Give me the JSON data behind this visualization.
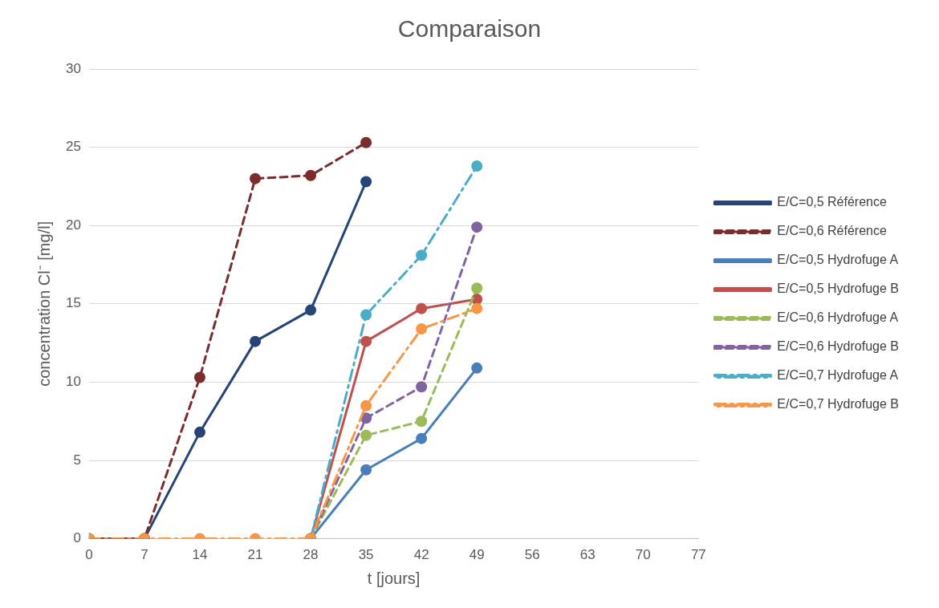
{
  "chart_data": {
    "type": "line",
    "title": "Comparaison",
    "xlabel": "t [jours]",
    "ylabel": "concentration Cl⁻ [mg/l]",
    "x": [
      0,
      7,
      14,
      21,
      28,
      35,
      42,
      49
    ],
    "xlim": [
      0,
      77
    ],
    "xticks": [
      0,
      7,
      14,
      21,
      28,
      35,
      42,
      49,
      56,
      63,
      70,
      77
    ],
    "ylim": [
      0,
      30
    ],
    "yticks": [
      0,
      5,
      10,
      15,
      20,
      25,
      30
    ],
    "grid": "y",
    "legend": "right",
    "marker": "circle",
    "series": [
      {
        "name": "E/C=0,5 Référence",
        "color": "#264478",
        "line_style": "solid",
        "values": [
          0,
          0,
          6.8,
          12.6,
          14.6,
          22.8,
          null,
          null
        ]
      },
      {
        "name": "E/C=0,6 Référence",
        "color": "#7b2c2c",
        "line_style": "dashed",
        "values": [
          0,
          0,
          10.3,
          23.0,
          23.2,
          25.3,
          null,
          null
        ]
      },
      {
        "name": "E/C=0,5 Hydrofuge A",
        "color": "#4a7ebb",
        "line_style": "solid",
        "values": [
          null,
          null,
          null,
          null,
          0,
          4.4,
          6.4,
          10.9
        ]
      },
      {
        "name": "E/C=0,5 Hydrofuge B",
        "color": "#c0504d",
        "line_style": "solid",
        "values": [
          null,
          null,
          null,
          null,
          0,
          12.6,
          14.7,
          15.3
        ]
      },
      {
        "name": "E/C=0,6 Hydrofuge A",
        "color": "#9bbb59",
        "line_style": "dashed",
        "values": [
          null,
          null,
          null,
          null,
          0,
          6.6,
          7.5,
          16.0
        ]
      },
      {
        "name": "E/C=0,6 Hydrofuge B",
        "color": "#8064a2",
        "line_style": "dashed",
        "values": [
          null,
          null,
          null,
          null,
          0,
          7.7,
          9.7,
          19.9
        ]
      },
      {
        "name": "E/C=0,7 Hydrofuge A",
        "color": "#4bacc6",
        "line_style": "dashdot",
        "values": [
          null,
          null,
          null,
          null,
          0,
          14.3,
          18.1,
          23.8
        ]
      },
      {
        "name": "E/C=0,7 Hydrofuge B",
        "color": "#f79646",
        "line_style": "dashdot",
        "values": [
          0,
          0,
          0,
          0,
          0,
          8.5,
          13.4,
          14.7
        ]
      }
    ]
  }
}
